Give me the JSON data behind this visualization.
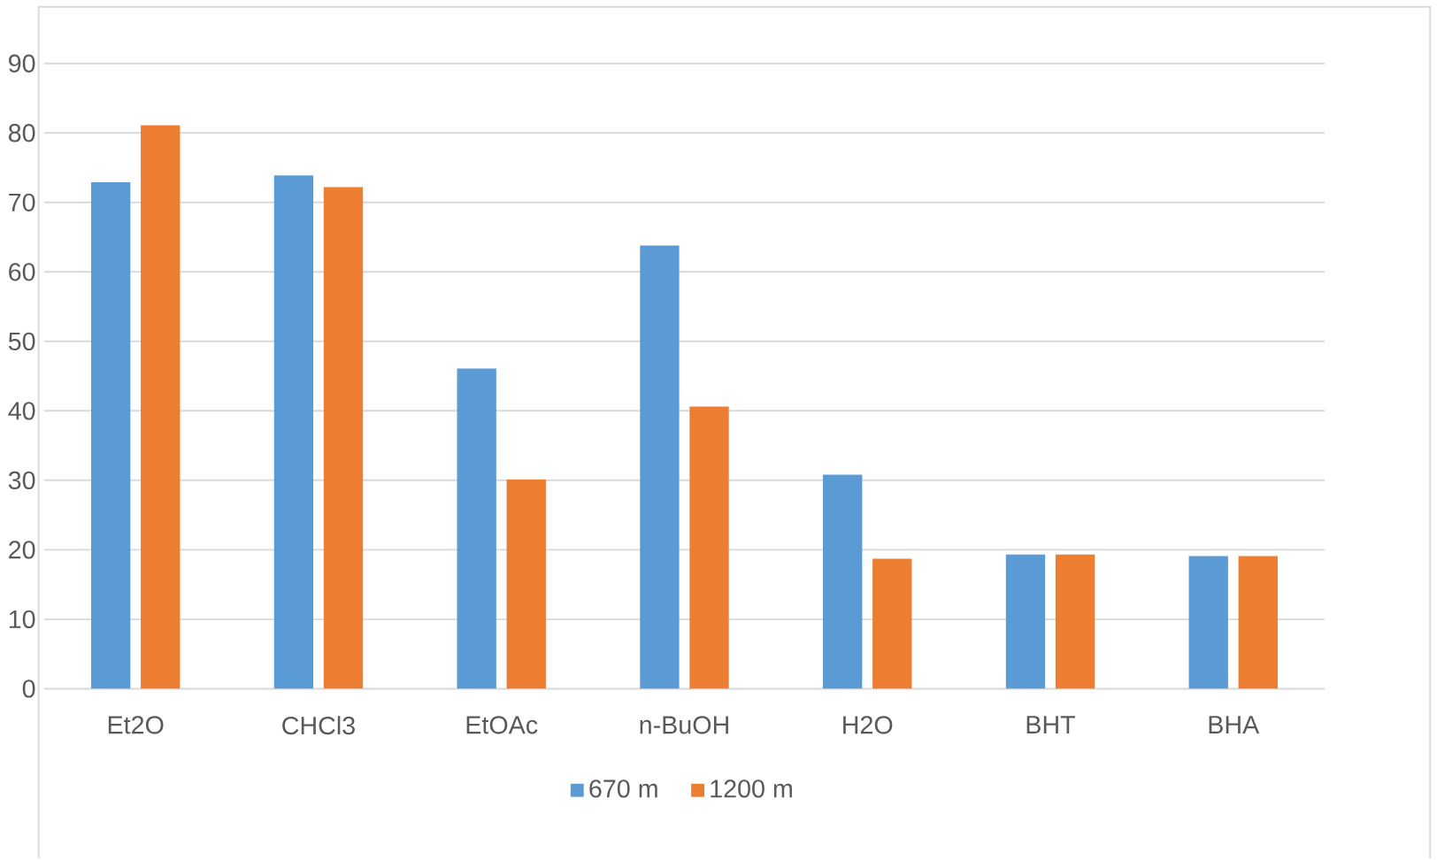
{
  "chart_data": {
    "type": "bar",
    "categories": [
      "Et2O",
      "CHCl3",
      "EtOAc",
      "n-BuOH",
      "H2O",
      "BHT",
      "BHA"
    ],
    "series": [
      {
        "name": "670 m",
        "color": "#5b9bd5",
        "values": [
          72.9,
          73.9,
          46.1,
          63.8,
          30.8,
          19.3,
          19.1
        ]
      },
      {
        "name": "1200 m",
        "color": "#ed7d31",
        "values": [
          81.1,
          72.2,
          30.1,
          40.6,
          18.7,
          19.3,
          19.1
        ]
      }
    ],
    "ylim": [
      0,
      90
    ],
    "yticks": [
      0,
      10,
      20,
      30,
      40,
      50,
      60,
      70,
      80,
      90
    ],
    "grid": "y",
    "legend": "bottom"
  }
}
